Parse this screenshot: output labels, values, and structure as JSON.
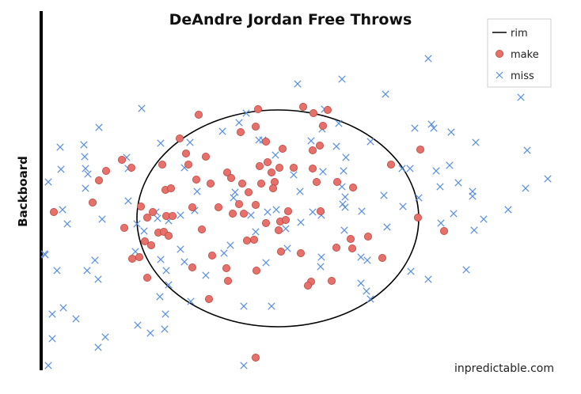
{
  "chart_data": {
    "type": "scatter",
    "title": "DeAndre Jordan Free Throws",
    "ylabel": "Backboard",
    "xlabel": "",
    "credit": "inpredictable.com",
    "legend": {
      "placement": "top-right",
      "entries": [
        {
          "name": "rim",
          "marker": "line"
        },
        {
          "name": "make",
          "marker": "circle"
        },
        {
          "name": "miss",
          "marker": "x"
        }
      ]
    },
    "colors": {
      "rim": "#000000",
      "make": "#e8706a",
      "make_stroke": "#b8463f",
      "miss": "#5b8fdc",
      "backboard": "#000000"
    },
    "rim": {
      "cx": 351,
      "cy": 276,
      "rx": 178,
      "ry": 137
    },
    "series": [
      {
        "name": "make",
        "points": [
          [
            326,
            138
          ],
          [
            383,
            135
          ],
          [
            396,
            143
          ],
          [
            414,
            139
          ],
          [
            251,
            145
          ],
          [
            323,
            160
          ],
          [
            304,
            167
          ],
          [
            408,
            159
          ],
          [
            227,
            175
          ],
          [
            336,
            179
          ],
          [
            235,
            194
          ],
          [
            238,
            208
          ],
          [
            260,
            198
          ],
          [
            357,
            188
          ],
          [
            395,
            190
          ],
          [
            404,
            184
          ],
          [
            531,
            189
          ],
          [
            494,
            208
          ],
          [
            154,
            202
          ],
          [
            166,
            212
          ],
          [
            205,
            208
          ],
          [
            134,
            216
          ],
          [
            125,
            228
          ],
          [
            209,
            240
          ],
          [
            216,
            238
          ],
          [
            248,
            227
          ],
          [
            266,
            232
          ],
          [
            287,
            218
          ],
          [
            292,
            225
          ],
          [
            306,
            232
          ],
          [
            328,
            210
          ],
          [
            338,
            205
          ],
          [
            343,
            218
          ],
          [
            353,
            212
          ],
          [
            371,
            212
          ],
          [
            330,
            232
          ],
          [
            347,
            230
          ],
          [
            345,
            238
          ],
          [
            314,
            243
          ],
          [
            395,
            213
          ],
          [
            400,
            230
          ],
          [
            426,
            230
          ],
          [
            446,
            237
          ],
          [
            117,
            256
          ],
          [
            68,
            268
          ],
          [
            178,
            261
          ],
          [
            193,
            268
          ],
          [
            210,
            273
          ],
          [
            218,
            273
          ],
          [
            243,
            262
          ],
          [
            276,
            262
          ],
          [
            294,
            270
          ],
          [
            302,
            258
          ],
          [
            323,
            259
          ],
          [
            308,
            270
          ],
          [
            336,
            282
          ],
          [
            354,
            280
          ],
          [
            361,
            278
          ],
          [
            364,
            267
          ],
          [
            405,
            267
          ],
          [
            528,
            275
          ],
          [
            561,
            292
          ],
          [
            157,
            288
          ],
          [
            186,
            275
          ],
          [
            200,
            294
          ],
          [
            207,
            293
          ],
          [
            213,
            298
          ],
          [
            255,
            290
          ],
          [
            191,
            310
          ],
          [
            183,
            305
          ],
          [
            312,
            304
          ],
          [
            321,
            303
          ],
          [
            352,
            291
          ],
          [
            355,
            318
          ],
          [
            380,
            320
          ],
          [
            425,
            313
          ],
          [
            445,
            314
          ],
          [
            443,
            302
          ],
          [
            465,
            299
          ],
          [
            483,
            326
          ],
          [
            176,
            325
          ],
          [
            167,
            327
          ],
          [
            243,
            338
          ],
          [
            268,
            323
          ],
          [
            286,
            339
          ],
          [
            324,
            342
          ],
          [
            288,
            355
          ],
          [
            393,
            356
          ],
          [
            389,
            361
          ],
          [
            419,
            355
          ],
          [
            186,
            351
          ],
          [
            264,
            378
          ],
          [
            323,
            452
          ]
        ]
      },
      {
        "name": "miss",
        "points": [
          [
            541,
            74
          ],
          [
            432,
            100
          ],
          [
            376,
            106
          ],
          [
            487,
            119
          ],
          [
            658,
            123
          ],
          [
            179,
            137
          ],
          [
            410,
            138
          ],
          [
            311,
            143
          ],
          [
            428,
            156
          ],
          [
            302,
            155
          ],
          [
            281,
            166
          ],
          [
            407,
            163
          ],
          [
            524,
            162
          ],
          [
            545,
            157
          ],
          [
            548,
            162
          ],
          [
            570,
            167
          ],
          [
            125,
            161
          ],
          [
            76,
            186
          ],
          [
            106,
            183
          ],
          [
            107,
            198
          ],
          [
            108,
            213
          ],
          [
            160,
            199
          ],
          [
            203,
            181
          ],
          [
            240,
            180
          ],
          [
            327,
            177
          ],
          [
            332,
            177
          ],
          [
            348,
            196
          ],
          [
            393,
            178
          ],
          [
            425,
            185
          ],
          [
            468,
            179
          ],
          [
            601,
            180
          ],
          [
            666,
            190
          ],
          [
            61,
            230
          ],
          [
            77,
            214
          ],
          [
            111,
            220
          ],
          [
            108,
            238
          ],
          [
            162,
            213
          ],
          [
            233,
            212
          ],
          [
            371,
            221
          ],
          [
            408,
            217
          ],
          [
            379,
            242
          ],
          [
            437,
            199
          ],
          [
            434,
            216
          ],
          [
            432,
            236
          ],
          [
            508,
            213
          ],
          [
            518,
            213
          ],
          [
            551,
            216
          ],
          [
            568,
            209
          ],
          [
            579,
            231
          ],
          [
            556,
            236
          ],
          [
            597,
            242
          ],
          [
            597,
            248
          ],
          [
            664,
            238
          ],
          [
            692,
            226
          ],
          [
            56,
            321
          ],
          [
            57,
            322
          ],
          [
            79,
            265
          ],
          [
            85,
            283
          ],
          [
            129,
            277
          ],
          [
            162,
            254
          ],
          [
            173,
            283
          ],
          [
            197,
            268
          ],
          [
            199,
            276
          ],
          [
            213,
            279
          ],
          [
            228,
            272
          ],
          [
            246,
            266
          ],
          [
            249,
            242
          ],
          [
            295,
            250
          ],
          [
            297,
            243
          ],
          [
            317,
            272
          ],
          [
            338,
            268
          ],
          [
            349,
            265
          ],
          [
            380,
            281
          ],
          [
            395,
            268
          ],
          [
            406,
            272
          ],
          [
            433,
            258
          ],
          [
            436,
            249
          ],
          [
            436,
            262
          ],
          [
            457,
            267
          ],
          [
            485,
            247
          ],
          [
            509,
            261
          ],
          [
            529,
            250
          ],
          [
            573,
            270
          ],
          [
            611,
            277
          ],
          [
            642,
            265
          ],
          [
            72,
            342
          ],
          [
            110,
            342
          ],
          [
            120,
            329
          ],
          [
            124,
            353
          ],
          [
            182,
            292
          ],
          [
            171,
            318
          ],
          [
            203,
            328
          ],
          [
            228,
            315
          ],
          [
            210,
            342
          ],
          [
            213,
            360
          ],
          [
            233,
            331
          ],
          [
            260,
            348
          ],
          [
            283,
            320
          ],
          [
            291,
            310
          ],
          [
            323,
            293
          ],
          [
            336,
            332
          ],
          [
            361,
            289
          ],
          [
            363,
            314
          ],
          [
            406,
            325
          ],
          [
            405,
            337
          ],
          [
            435,
            291
          ],
          [
            456,
            325
          ],
          [
            464,
            329
          ],
          [
            489,
            287
          ],
          [
            519,
            343
          ],
          [
            541,
            353
          ],
          [
            557,
            282
          ],
          [
            589,
            341
          ],
          [
            599,
            291
          ],
          [
            80,
            389
          ],
          [
            66,
            397
          ],
          [
            96,
            403
          ],
          [
            66,
            428
          ],
          [
            124,
            439
          ],
          [
            133,
            426
          ],
          [
            174,
            411
          ],
          [
            190,
            421
          ],
          [
            209,
            397
          ],
          [
            208,
            416
          ],
          [
            241,
            381
          ],
          [
            308,
            387
          ],
          [
            343,
            387
          ],
          [
            308,
            462
          ],
          [
            456,
            358
          ],
          [
            463,
            368
          ],
          [
            468,
            378
          ],
          [
            61,
            462
          ],
          [
            202,
            375
          ]
        ]
      }
    ]
  }
}
